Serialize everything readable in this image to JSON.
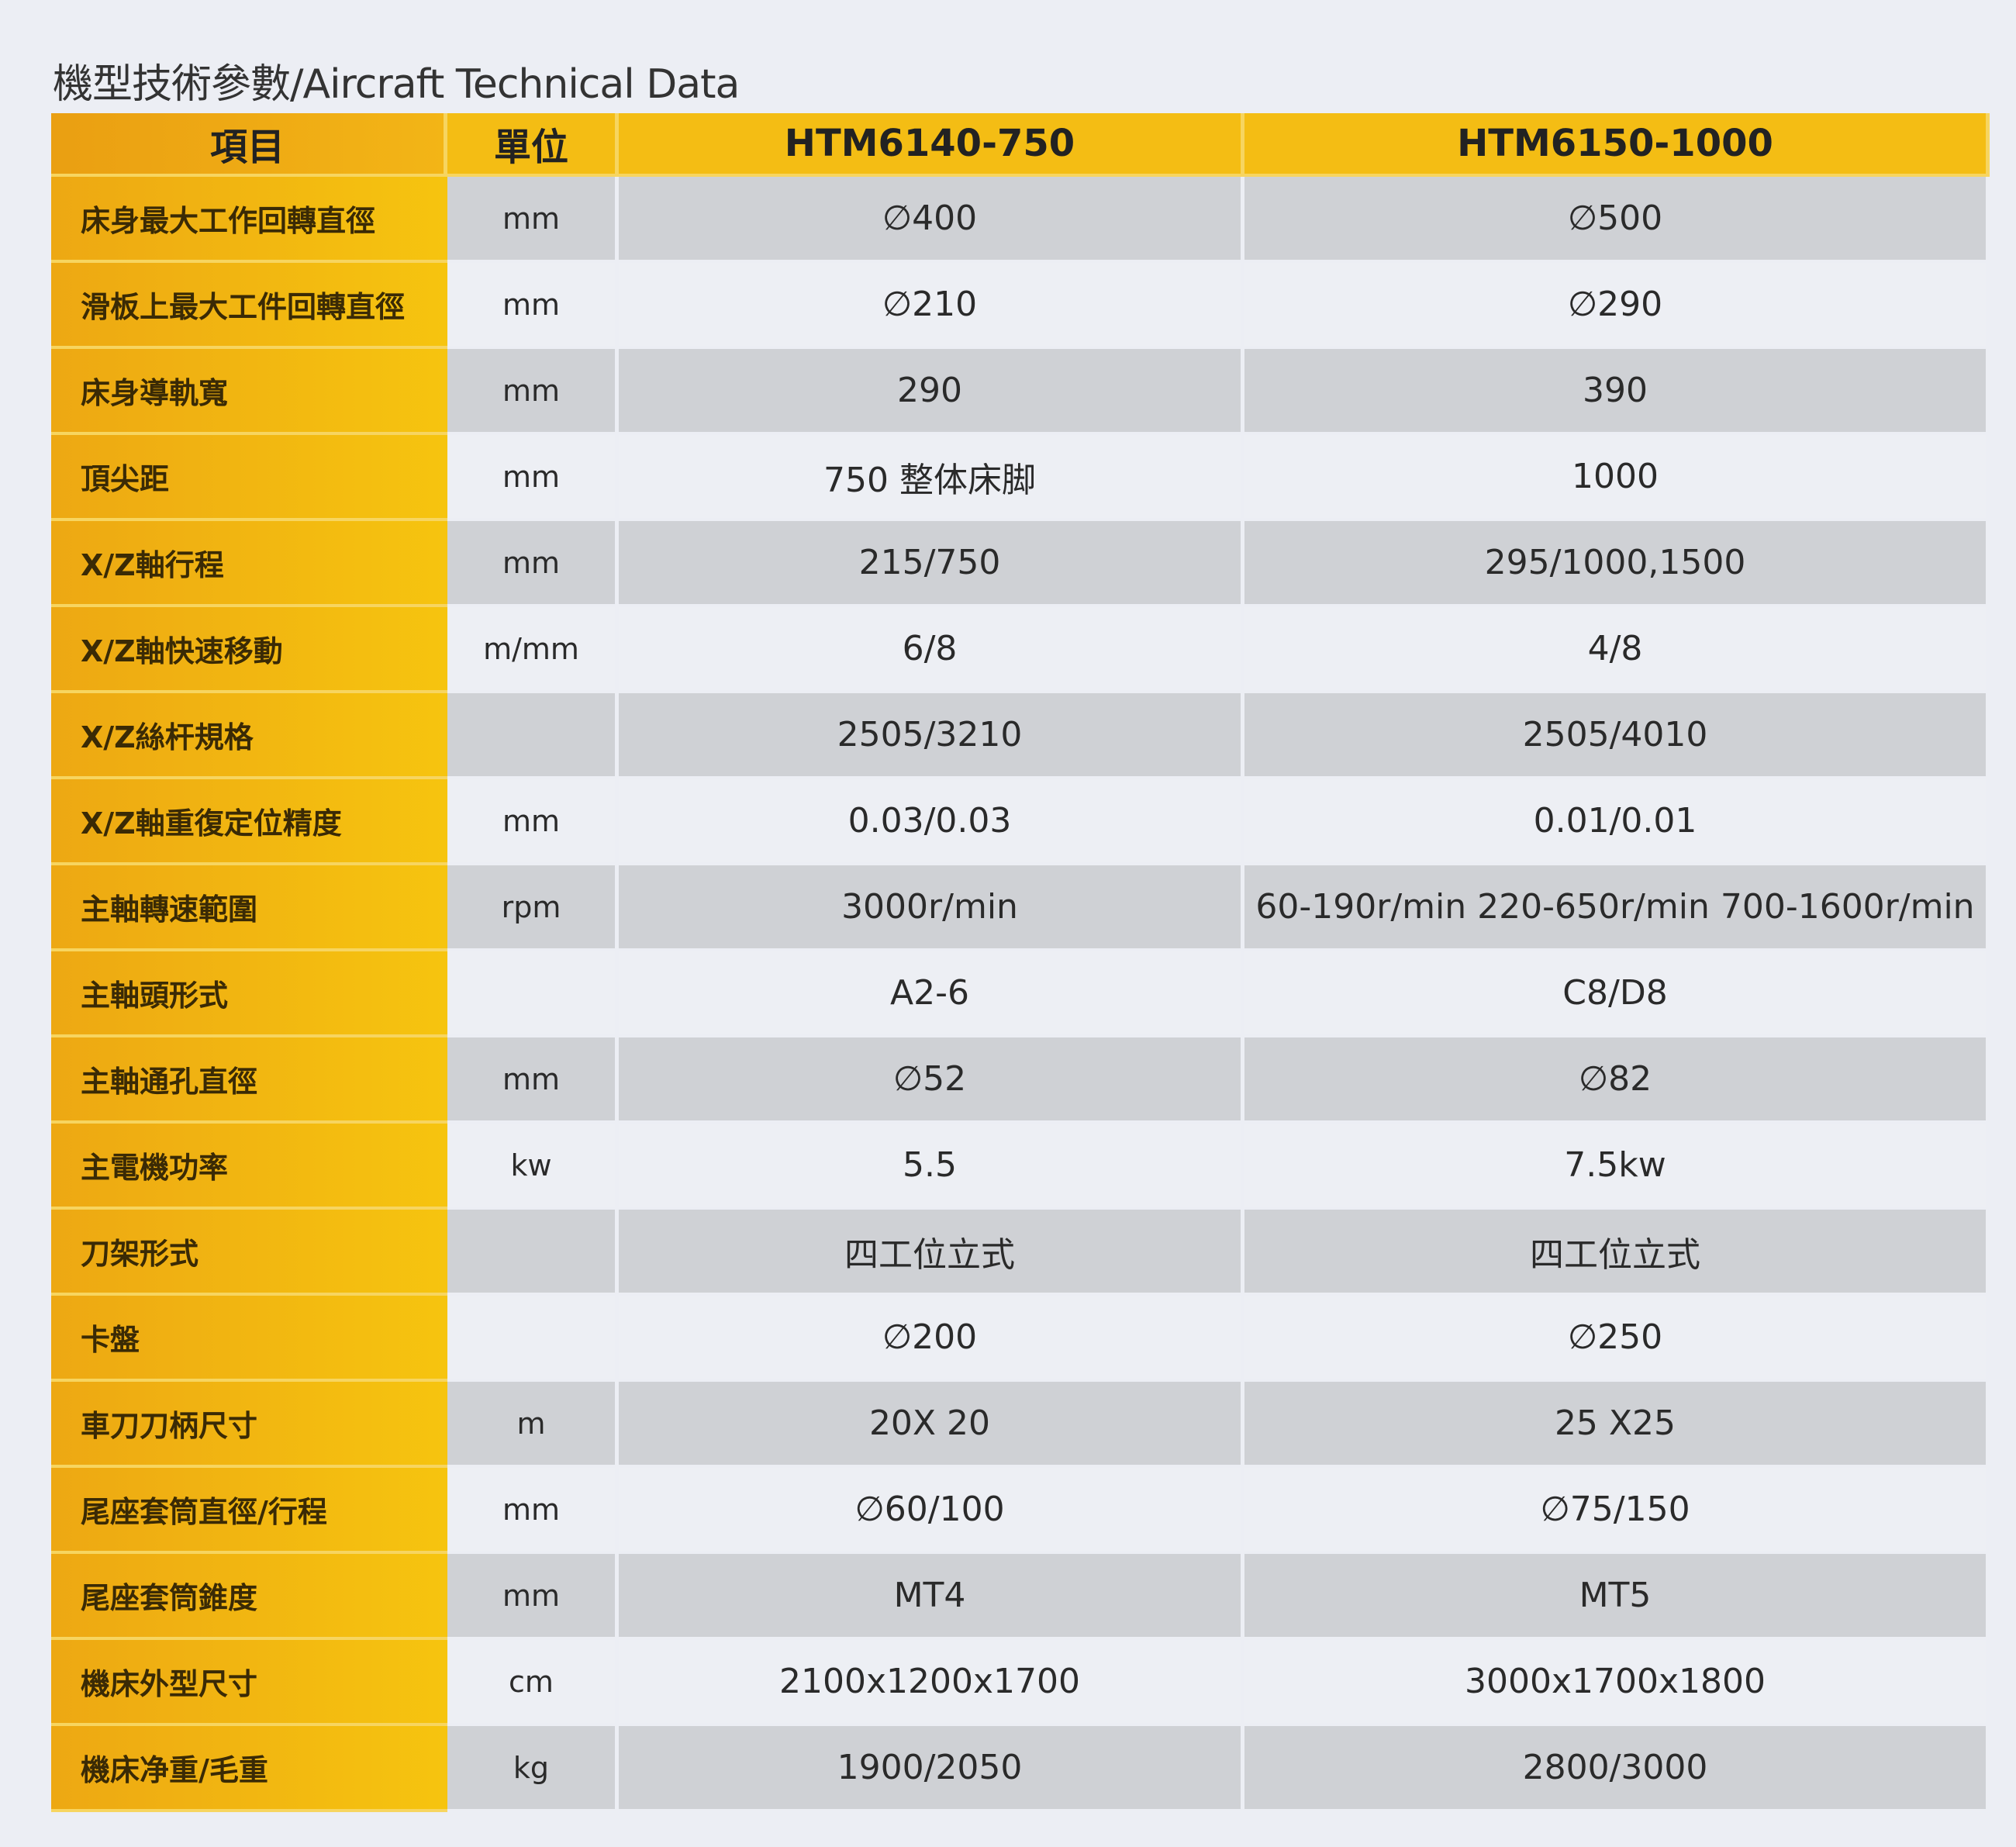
{
  "title": "機型技術參數/Aircraft Technical Data",
  "colors": {
    "header": "#f4bd14",
    "label_column": "#f0b012",
    "shaded_row": "#cfd1d5",
    "background": "#eceef4"
  },
  "headers": [
    "項目",
    "單位",
    "HTM6140-750",
    "HTM6150-1000"
  ],
  "rows": [
    {
      "item": "床身最大工作回轉直徑",
      "unit": "mm",
      "m1": "∅400",
      "m2": "∅500"
    },
    {
      "item": "滑板上最大工件回轉直徑",
      "unit": "mm",
      "m1": "∅210",
      "m2": "∅290"
    },
    {
      "item": "床身導軌寬",
      "unit": "mm",
      "m1": "290",
      "m2": "390"
    },
    {
      "item": "頂尖距",
      "unit": "mm",
      "m1": "750  整体床脚",
      "m2": "1000"
    },
    {
      "item": "X/Z軸行程",
      "unit": "mm",
      "m1": "215/750",
      "m2": "295/1000,1500"
    },
    {
      "item": "X/Z軸快速移動",
      "unit": "m/mm",
      "m1": "6/8",
      "m2": "4/8"
    },
    {
      "item": "X/Z絲杆規格",
      "unit": "",
      "m1": "2505/3210",
      "m2": "2505/4010"
    },
    {
      "item": "X/Z軸重復定位精度",
      "unit": "mm",
      "m1": "0.03/0.03",
      "m2": "0.01/0.01"
    },
    {
      "item": "主軸轉速範圍",
      "unit": "rpm",
      "m1": "3000r/min",
      "m2": "60-190r/min  220-650r/min  700-1600r/min"
    },
    {
      "item": "主軸頭形式",
      "unit": "",
      "m1": "A2-6",
      "m2": "C8/D8"
    },
    {
      "item": "主軸通孔直徑",
      "unit": "mm",
      "m1": "∅52",
      "m2": "∅82"
    },
    {
      "item": "主電機功率",
      "unit": "kw",
      "m1": "5.5",
      "m2": "7.5kw"
    },
    {
      "item": "刀架形式",
      "unit": "",
      "m1": "四工位立式",
      "m2": "四工位立式"
    },
    {
      "item": "卡盤",
      "unit": "",
      "m1": "∅200",
      "m2": "∅250"
    },
    {
      "item": "車刀刀柄尺寸",
      "unit": "m",
      "m1": "20X 20",
      "m2": "25 X25"
    },
    {
      "item": "尾座套筒直徑/行程",
      "unit": "mm",
      "m1": "∅60/100",
      "m2": "∅75/150"
    },
    {
      "item": "尾座套筒錐度",
      "unit": "mm",
      "m1": "MT4",
      "m2": "MT5"
    },
    {
      "item": "機床外型尺寸",
      "unit": "cm",
      "m1": "2100x1200x1700",
      "m2": "3000x1700x1800"
    },
    {
      "item": "機床净重/毛重",
      "unit": "kg",
      "m1": "1900/2050",
      "m2": "2800/3000"
    }
  ]
}
